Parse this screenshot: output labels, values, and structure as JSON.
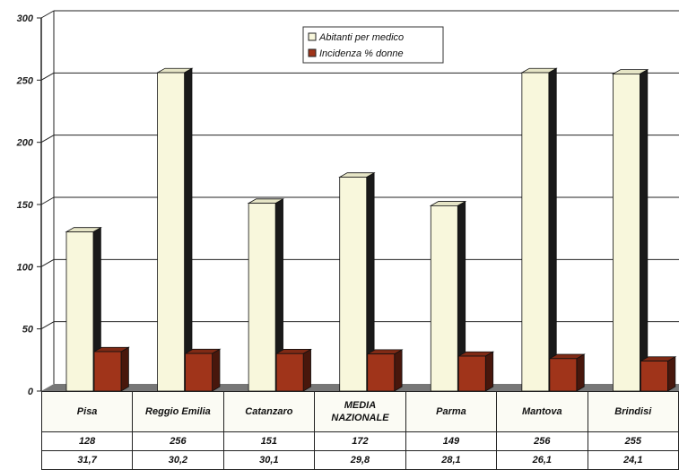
{
  "chart_data": {
    "type": "bar",
    "categories": [
      "Pisa",
      "Reggio Emilia",
      "Catanzaro",
      "MEDIA NAZIONALE",
      "Parma",
      "Mantova",
      "Brindisi"
    ],
    "series": [
      {
        "name": "Abitanti per medico",
        "values": [
          128,
          256,
          151,
          172,
          149,
          256,
          255
        ],
        "labels": [
          "128",
          "256",
          "151",
          "172",
          "149",
          "256",
          "255"
        ],
        "color": "#f8f7dc"
      },
      {
        "name": "Incidenza % donne",
        "values": [
          31.7,
          30.2,
          30.1,
          29.8,
          28.1,
          26.1,
          24.1
        ],
        "labels": [
          "31,7",
          "30,2",
          "30,1",
          "29,8",
          "28,1",
          "26,1",
          "24,1"
        ],
        "color": "#a0341a"
      }
    ],
    "title": "",
    "xlabel": "",
    "ylabel": "",
    "ylim": [
      0,
      300
    ],
    "yticks": [
      "0",
      "50",
      "100",
      "150",
      "200",
      "250",
      "300"
    ],
    "grid": true,
    "legend_position": "top-center"
  }
}
